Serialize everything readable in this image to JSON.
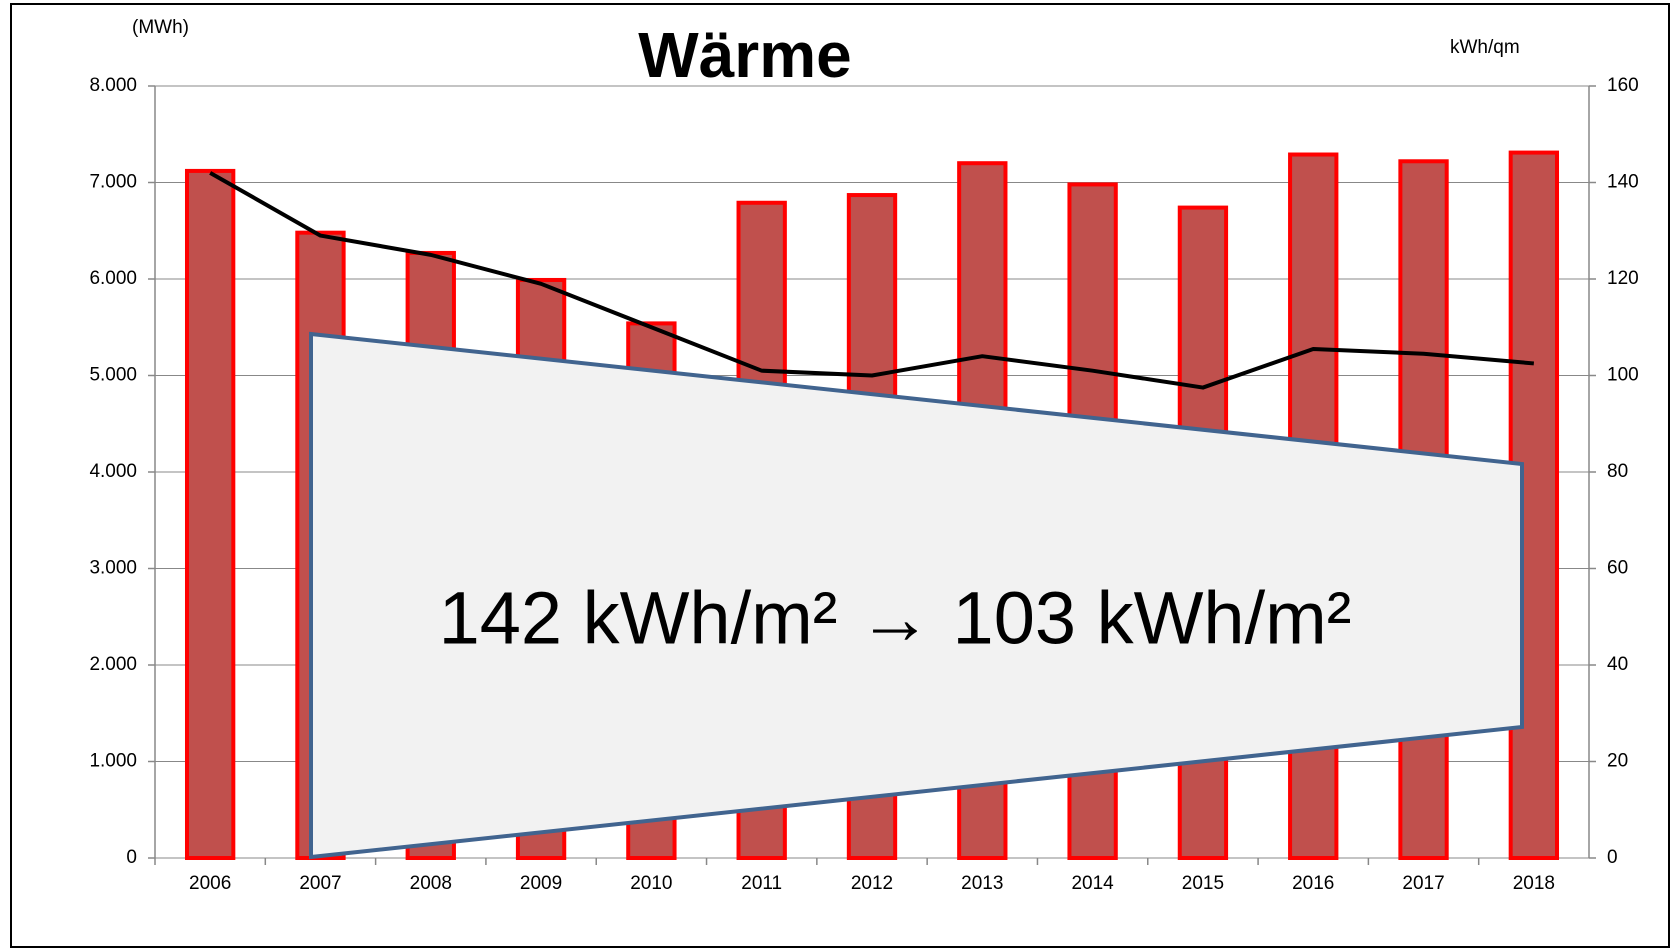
{
  "chart_data": {
    "type": "bar",
    "title": "Wärme",
    "ylabel": "(MWh)",
    "y2label": "kWh/qm",
    "annotation": "142 kWh/m²  →  103 kWh/m²",
    "categories": [
      "2006",
      "2007",
      "2008",
      "2009",
      "2010",
      "2011",
      "2012",
      "2013",
      "2014",
      "2015",
      "2016",
      "2017",
      "2018"
    ],
    "series": [
      {
        "type": "bar",
        "color": "#c0504d",
        "edgecolor": "#ff0000",
        "values": [
          7120,
          6480,
          6270,
          5990,
          5540,
          6790,
          6870,
          7200,
          6980,
          6740,
          7290,
          7220,
          7310
        ]
      },
      {
        "type": "line",
        "axis": "y2",
        "color": "#000000",
        "values": [
          142,
          129,
          125,
          119,
          110,
          101,
          100,
          104,
          101,
          97.5,
          105.5,
          104.5,
          102.5
        ]
      }
    ],
    "ylim": [
      0,
      8000
    ],
    "yticks": [
      {
        "value": 0,
        "label": "0"
      },
      {
        "value": 1000,
        "label": "1.000"
      },
      {
        "value": 2000,
        "label": "2.000"
      },
      {
        "value": 3000,
        "label": "3.000"
      },
      {
        "value": 4000,
        "label": "4.000"
      },
      {
        "value": 5000,
        "label": "5.000"
      },
      {
        "value": 6000,
        "label": "6.000"
      },
      {
        "value": 7000,
        "label": "7.000"
      },
      {
        "value": 8000,
        "label": "8.000"
      }
    ],
    "y2lim": [
      0,
      160
    ],
    "y2ticks": [
      0,
      20,
      40,
      60,
      80,
      100,
      120,
      140,
      160
    ],
    "grid": true
  }
}
